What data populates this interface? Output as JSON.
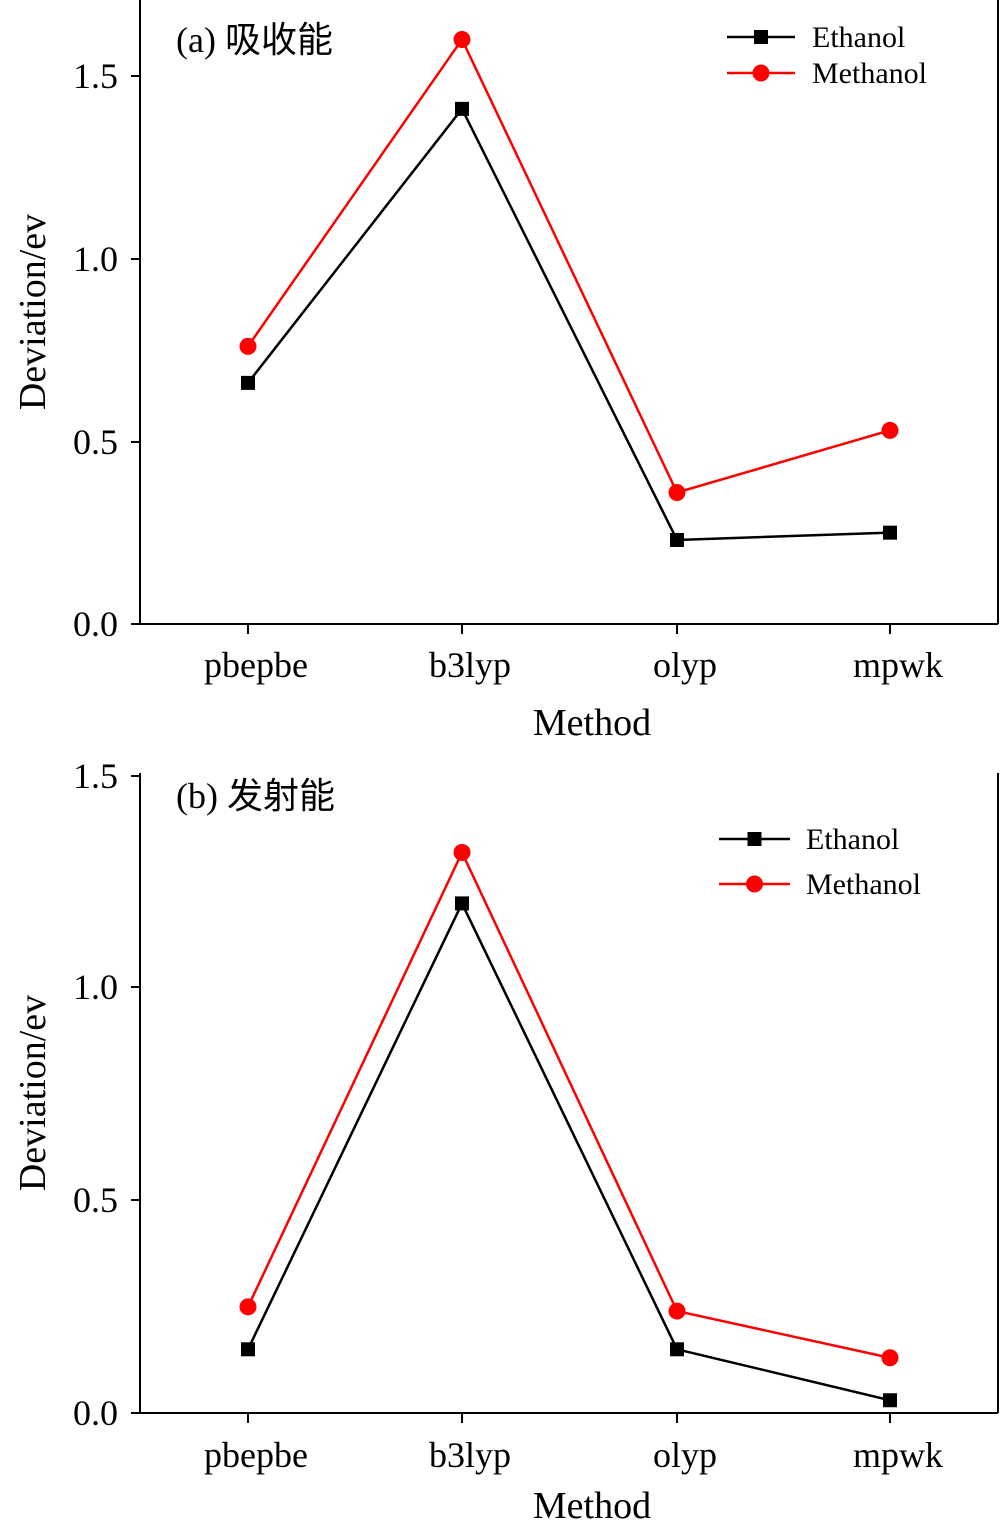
{
  "chart_data": [
    {
      "type": "line",
      "title": "(a) 吸收能",
      "xlabel": "Method",
      "ylabel": "Deviation/ev",
      "categories": [
        "pbepbe",
        "b3lyp",
        "olyp",
        "mpwk"
      ],
      "ylim": [
        0.0,
        1.7
      ],
      "yticks": [
        "0.0",
        "0.5",
        "1.0",
        "1.5"
      ],
      "legend_position": "top-right",
      "grid": false,
      "series": [
        {
          "name": "Ethanol",
          "color": "#000000",
          "marker": "square",
          "values": [
            0.66,
            1.41,
            0.23,
            0.25
          ]
        },
        {
          "name": "Methanol",
          "color": "#ff0000",
          "marker": "circle",
          "values": [
            0.76,
            1.6,
            0.36,
            0.53
          ]
        }
      ]
    },
    {
      "type": "line",
      "title": "(b) 发射能",
      "xlabel": "Method",
      "ylabel": "Deviation/ev",
      "categories": [
        "pbepbe",
        "b3lyp",
        "olyp",
        "mpwk"
      ],
      "ylim": [
        0.0,
        1.5
      ],
      "yticks": [
        "0.0",
        "0.5",
        "1.0",
        "1.5"
      ],
      "legend_position": "top-right",
      "grid": false,
      "series": [
        {
          "name": "Ethanol",
          "color": "#000000",
          "marker": "square",
          "values": [
            0.15,
            1.2,
            0.15,
            0.03
          ]
        },
        {
          "name": "Methanol",
          "color": "#ff0000",
          "marker": "circle",
          "values": [
            0.25,
            1.32,
            0.24,
            0.13
          ]
        }
      ]
    }
  ]
}
